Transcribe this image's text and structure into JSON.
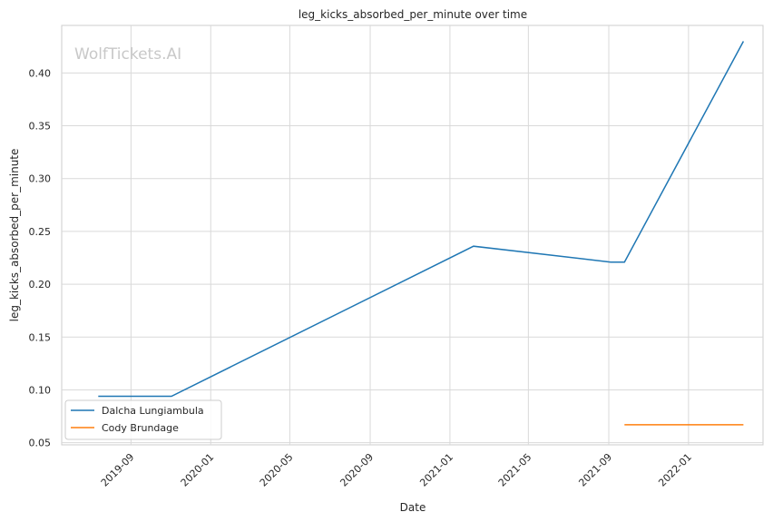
{
  "watermark": "WolfTickets.AI",
  "chart_data": {
    "type": "line",
    "title": "leg_kicks_absorbed_per_minute over time",
    "xlabel": "Date",
    "ylabel": "leg_kicks_absorbed_per_minute",
    "x_range": [
      "2019-05-18",
      "2022-04-25"
    ],
    "ylim": [
      0.048,
      0.445
    ],
    "x_ticks": [
      "2019-09",
      "2020-01",
      "2020-05",
      "2020-09",
      "2021-01",
      "2021-05",
      "2021-09",
      "2022-01"
    ],
    "y_ticks": [
      "0.05",
      "0.10",
      "0.15",
      "0.20",
      "0.25",
      "0.30",
      "0.35",
      "0.40"
    ],
    "grid": true,
    "legend_position": "lower-left",
    "series": [
      {
        "name": "Dalcha Lungiambula",
        "color": "#1f77b4",
        "points": [
          {
            "x": "2019-07-13",
            "y": 0.094
          },
          {
            "x": "2019-11-02",
            "y": 0.094
          },
          {
            "x": "2021-02-06",
            "y": 0.236
          },
          {
            "x": "2021-09-04",
            "y": 0.221
          },
          {
            "x": "2021-09-25",
            "y": 0.221
          },
          {
            "x": "2022-03-26",
            "y": 0.43
          }
        ]
      },
      {
        "name": "Cody Brundage",
        "color": "#ff7f0e",
        "points": [
          {
            "x": "2021-09-25",
            "y": 0.067
          },
          {
            "x": "2022-03-26",
            "y": 0.067
          }
        ]
      }
    ]
  }
}
